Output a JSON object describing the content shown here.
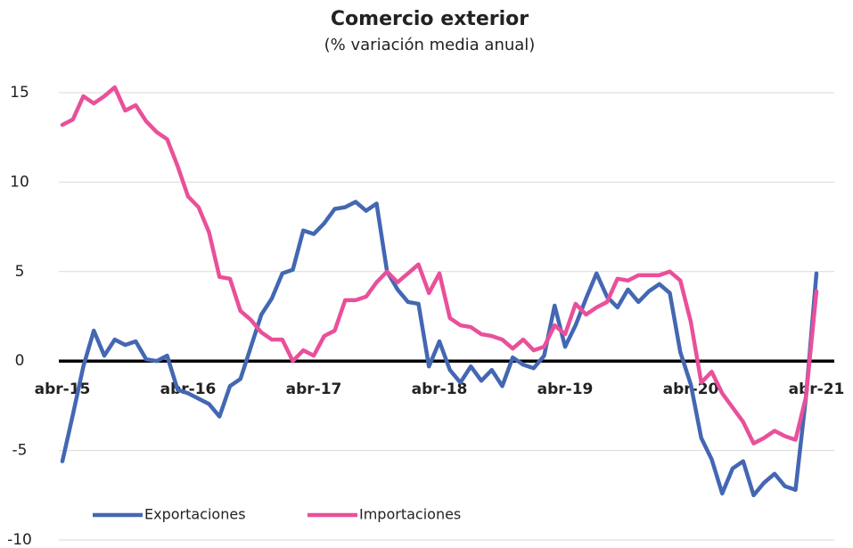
{
  "chart_data": {
    "type": "line",
    "title": "Comercio exterior",
    "subtitle": "(% variación media anual)",
    "categories": [
      "abr-15",
      null,
      null,
      null,
      null,
      null,
      null,
      null,
      null,
      null,
      null,
      null,
      "abr-16",
      null,
      null,
      null,
      null,
      null,
      null,
      null,
      null,
      null,
      null,
      null,
      "abr-17",
      null,
      null,
      null,
      null,
      null,
      null,
      null,
      null,
      null,
      null,
      null,
      "abr-18",
      null,
      null,
      null,
      null,
      null,
      null,
      null,
      null,
      null,
      null,
      null,
      "abr-19",
      null,
      null,
      null,
      null,
      null,
      null,
      null,
      null,
      null,
      null,
      null,
      "abr-20",
      null,
      null,
      null,
      null,
      null,
      null,
      null,
      null,
      null,
      null,
      null,
      "abr-21"
    ],
    "series": [
      {
        "name": "Exportaciones",
        "color": "#4467b3",
        "values": [
          -5.6,
          -3,
          -0.3,
          1.7,
          0.3,
          1.2,
          0.9,
          1.1,
          0.1,
          0,
          0.3,
          -1.6,
          -1.8,
          -2.1,
          -2.4,
          -3.1,
          -1.4,
          -1,
          0.8,
          2.6,
          3.5,
          4.9,
          5.1,
          7.3,
          7.1,
          7.7,
          8.5,
          8.6,
          8.9,
          8.4,
          8.8,
          5,
          4,
          3.3,
          3.2,
          -0.3,
          1.1,
          -0.5,
          -1.2,
          -0.3,
          -1.1,
          -0.5,
          -1.4,
          0.2,
          -0.2,
          -0.4,
          0.3,
          3.1,
          0.8,
          2,
          3.5,
          4.9,
          3.6,
          3,
          4,
          3.3,
          3.9,
          4.3,
          3.8,
          0.5,
          -1.3,
          -4.3,
          -5.5,
          -7.4,
          -6,
          -5.6,
          -7.5,
          -6.8,
          -6.3,
          -7,
          -7.2,
          -2,
          4.9
        ]
      },
      {
        "name": "Importaciones",
        "color": "#e9509a",
        "values": [
          13.2,
          13.5,
          14.8,
          14.4,
          14.8,
          15.3,
          14,
          14.3,
          13.4,
          12.8,
          12.4,
          10.9,
          9.2,
          8.6,
          7.2,
          4.7,
          4.6,
          2.8,
          2.3,
          1.6,
          1.2,
          1.2,
          0,
          0.6,
          0.3,
          1.4,
          1.7,
          3.4,
          3.4,
          3.6,
          4.4,
          5,
          4.4,
          4.9,
          5.4,
          3.8,
          4.9,
          2.4,
          2,
          1.9,
          1.5,
          1.4,
          1.2,
          0.7,
          1.2,
          0.6,
          0.8,
          2,
          1.5,
          3.2,
          2.6,
          3,
          3.3,
          4.6,
          4.5,
          4.8,
          4.8,
          4.8,
          5,
          4.5,
          2.2,
          -1.2,
          -0.6,
          -1.8,
          -2.6,
          -3.4,
          -4.6,
          -4.3,
          -3.9,
          -4.2,
          -4.4,
          -2,
          3.9
        ]
      }
    ],
    "ylim": [
      -10,
      15
    ],
    "yticks": [
      -10,
      -5,
      0,
      5,
      10,
      15
    ],
    "grid": true
  }
}
